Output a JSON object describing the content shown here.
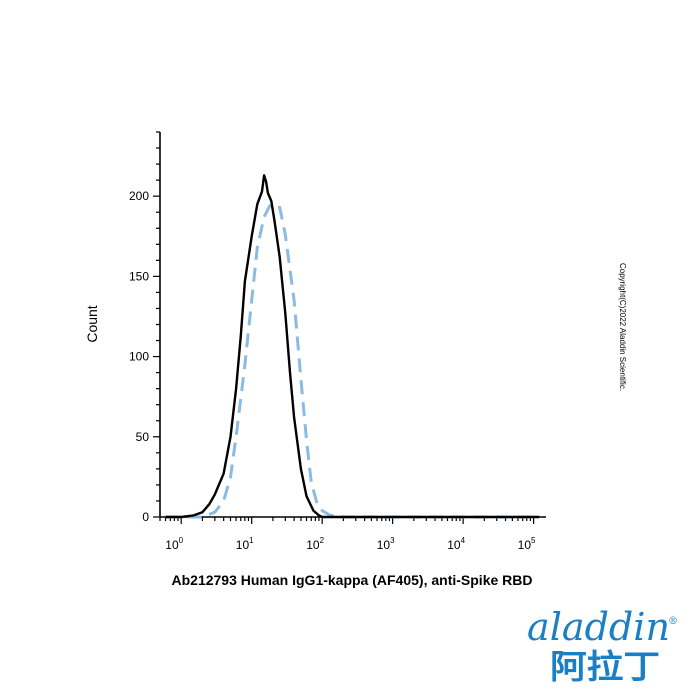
{
  "chart_data": {
    "type": "line",
    "title": "",
    "xlabel": "Ab212793 Human IgG1-kappa (AF405), anti-Spike RBD",
    "ylabel": "Count",
    "xscale": "log",
    "xlim": [
      0.5,
      150000
    ],
    "ylim": [
      0,
      240
    ],
    "y_ticks": [
      0,
      50,
      100,
      150,
      200
    ],
    "x_ticks": [
      {
        "base": "10",
        "exp": "0",
        "value": 1
      },
      {
        "base": "10",
        "exp": "1",
        "value": 10
      },
      {
        "base": "10",
        "exp": "2",
        "value": 100
      },
      {
        "base": "10",
        "exp": "3",
        "value": 1000
      },
      {
        "base": "10",
        "exp": "4",
        "value": 10000
      },
      {
        "base": "10",
        "exp": "5",
        "value": 100000
      }
    ],
    "grid": false,
    "legend": "none",
    "series": [
      {
        "color": "#000000",
        "style": "solid",
        "x": [
          0.6,
          1.0,
          1.5,
          2.0,
          2.5,
          3.0,
          4.0,
          5.0,
          6.0,
          7.0,
          8.0,
          10.0,
          12.0,
          14.0,
          15.0,
          16.0,
          17.0,
          19.0,
          21.0,
          25.0,
          30.0,
          35.0,
          40.0,
          50.0,
          60.0,
          75.0,
          90.0,
          100.0,
          1000.0,
          10000.0,
          120000.0
        ],
        "y": [
          0,
          0,
          1,
          3,
          8,
          14,
          27,
          50,
          80,
          113,
          147,
          175,
          195,
          203,
          213,
          209,
          202,
          197,
          185,
          162,
          127,
          90,
          62,
          30,
          13,
          4,
          1,
          0,
          0,
          0,
          0
        ]
      },
      {
        "color": "#8bbbe3",
        "style": "dashed",
        "x": [
          0.6,
          1.0,
          1.5,
          2.0,
          3.0,
          4.0,
          5.0,
          6.0,
          8.0,
          10.0,
          12.0,
          15.0,
          18.0,
          20.0,
          25.0,
          30.0,
          40.0,
          50.0,
          60.0,
          70.0,
          85.0,
          100.0,
          130.0,
          200.0,
          1000.0,
          10000.0,
          120000.0
        ],
        "y": [
          0,
          0,
          0,
          0,
          3,
          10,
          25,
          50,
          95,
          135,
          168,
          187,
          194,
          192,
          193,
          176,
          135,
          86,
          48,
          22,
          8,
          4,
          1,
          0,
          0,
          0,
          0
        ]
      }
    ]
  },
  "copyright": "Copyright(C)2022 Aladdin Scientific.",
  "brand": {
    "name": "aladdin",
    "registered": "®",
    "chinese": "阿拉丁",
    "color": "#1a7fc4"
  }
}
